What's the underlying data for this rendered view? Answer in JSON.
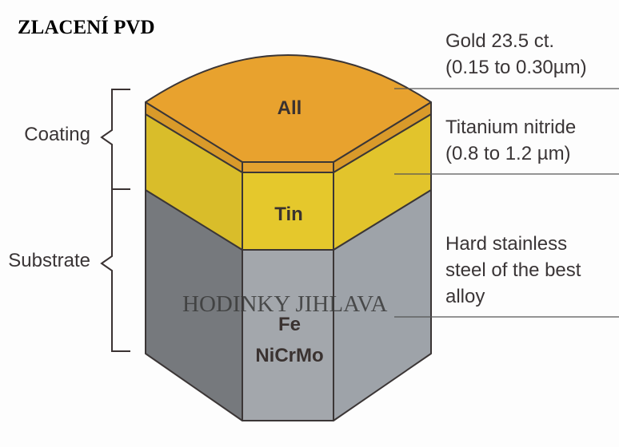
{
  "title": "ZLACENÍ PVD",
  "watermark": "HODINKY JIHLAVA",
  "brackets": {
    "coating": "Coating",
    "substrate": "Substrate"
  },
  "layers": {
    "gold": {
      "label": "All",
      "desc_line1": "Gold 23.5 ct.",
      "desc_line2": "(0.15 to 0.30µm)",
      "color": "#e8a22e"
    },
    "tin": {
      "label": "Tin",
      "desc_line1": "Titanium nitride",
      "desc_line2": "(0.8 to 1.2 µm)",
      "color": "#e2c52c"
    },
    "steel": {
      "label_line1": "Fe",
      "label_line2": "NiCrMo",
      "desc_line1": "Hard stainless",
      "desc_line2": "steel of the best",
      "desc_line3": "alloy",
      "color": "#9fa3a8"
    }
  }
}
